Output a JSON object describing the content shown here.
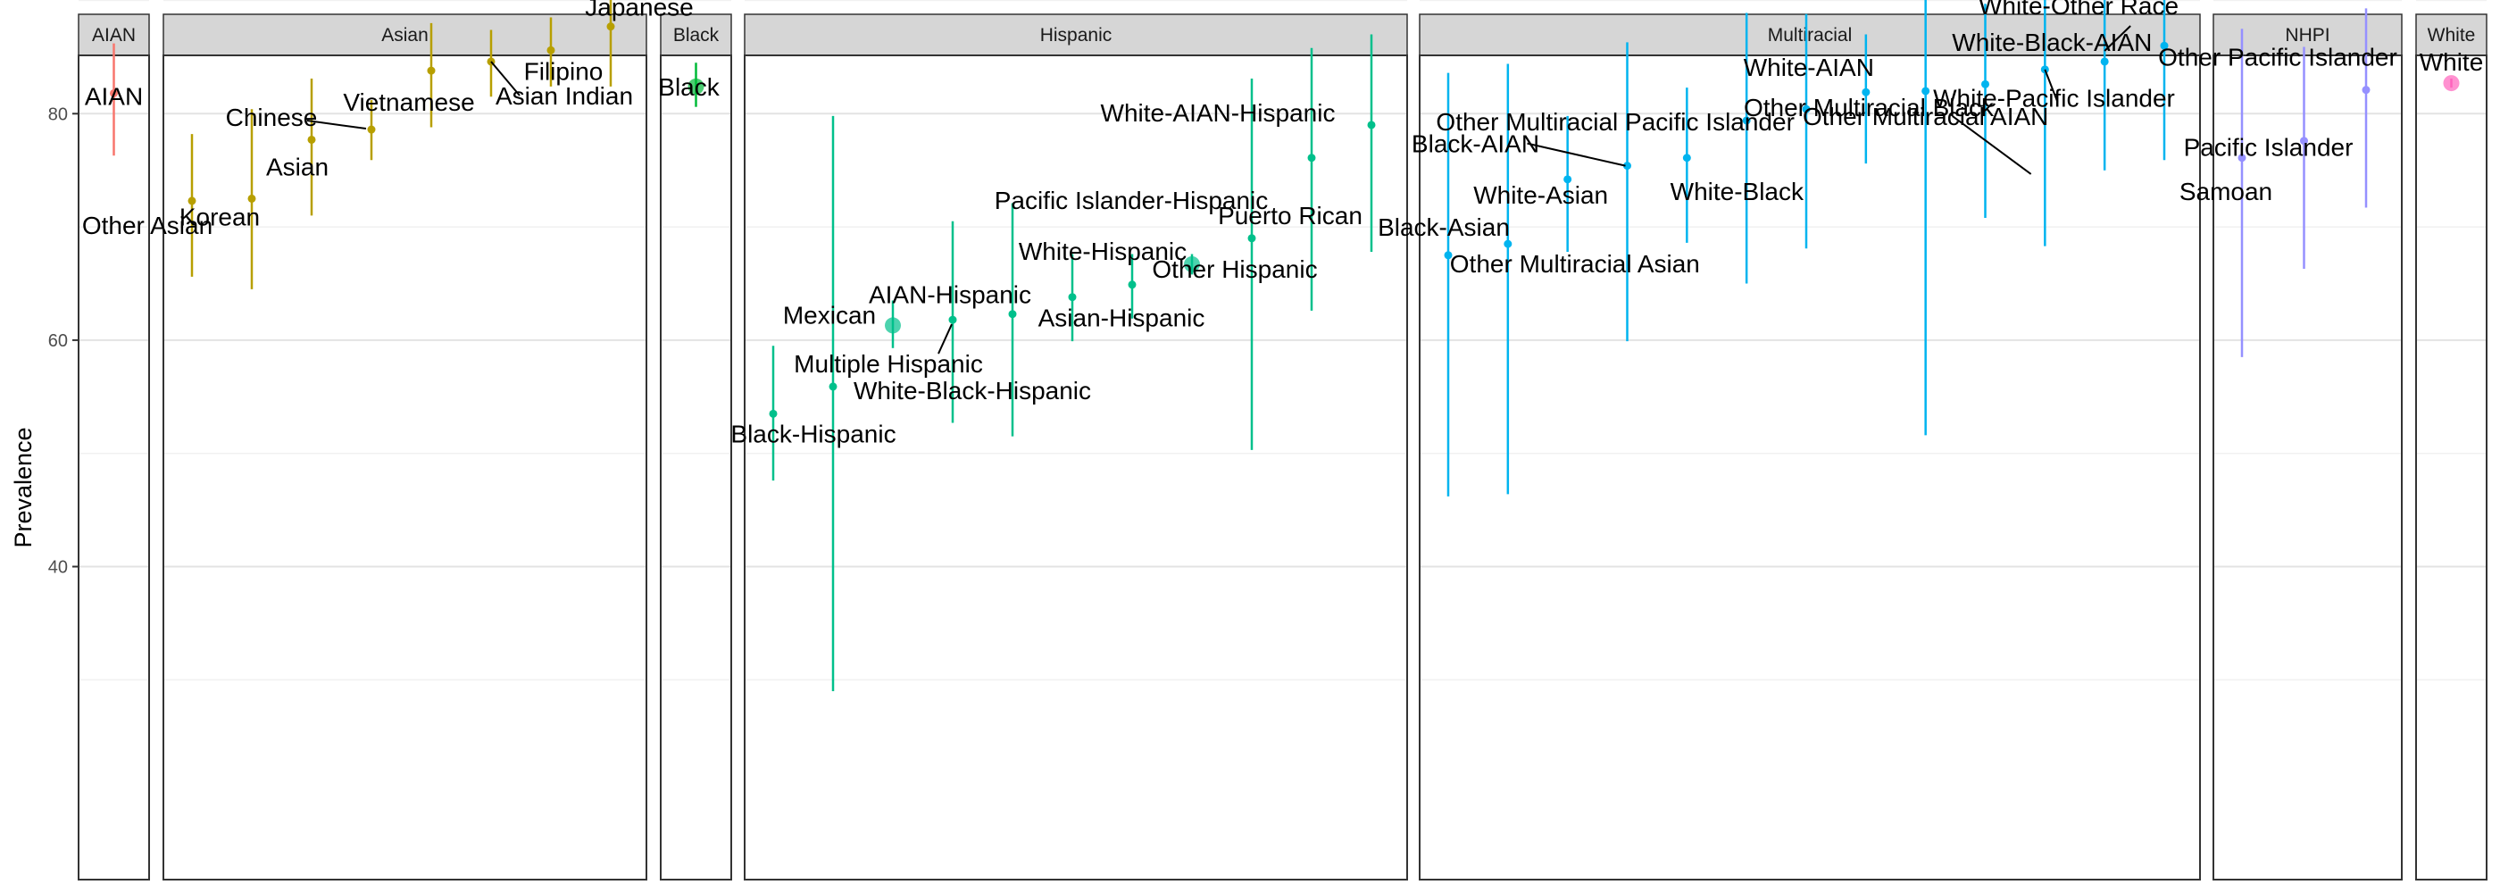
{
  "chart_data": {
    "type": "scatter",
    "subtype": "faceted point-range plot",
    "ylabel": "Prevalence",
    "ylim": [
      27,
      97
    ],
    "yticks": [
      40,
      60,
      80
    ],
    "grid": true,
    "legend": "none",
    "facets": [
      {
        "name": "AIAN",
        "color": "#F8766D",
        "points": [
          {
            "label": "AIAN",
            "y": 81.8,
            "lo": 76.3,
            "hi": 86.2,
            "large": false
          }
        ]
      },
      {
        "name": "Asian",
        "color": "#B79F00",
        "points": [
          {
            "label": "Other Asian",
            "y": 72.3,
            "lo": 65.6,
            "hi": 78.2,
            "large": false
          },
          {
            "label": "Korean",
            "y": 72.5,
            "lo": 64.5,
            "hi": 80.4,
            "large": false
          },
          {
            "label": "Asian",
            "y": 77.7,
            "lo": 71.0,
            "hi": 83.1,
            "large": false
          },
          {
            "label": "Chinese",
            "y": 78.6,
            "lo": 75.9,
            "hi": 81.2,
            "large": false
          },
          {
            "label": "Vietnamese",
            "y": 83.8,
            "lo": 78.8,
            "hi": 88.0,
            "large": false
          },
          {
            "label": "Asian Indian",
            "y": 84.6,
            "lo": 81.5,
            "hi": 87.4,
            "large": false
          },
          {
            "label": "Filipino",
            "y": 85.6,
            "lo": 82.4,
            "hi": 88.5,
            "large": false
          },
          {
            "label": "Japanese",
            "y": 87.7,
            "lo": 82.4,
            "hi": 91.5,
            "large": false
          }
        ]
      },
      {
        "name": "Black",
        "color": "#00BA38",
        "points": [
          {
            "label": "Black",
            "y": 82.4,
            "lo": 80.6,
            "hi": 84.5,
            "large": true
          }
        ]
      },
      {
        "name": "Hispanic",
        "color": "#00C08B",
        "points": [
          {
            "label": "Black-Hispanic",
            "y": 53.5,
            "lo": 47.6,
            "hi": 59.5,
            "large": false
          },
          {
            "label": "White-Black-Hispanic",
            "y": 55.9,
            "lo": 29.0,
            "hi": 79.8,
            "large": false
          },
          {
            "label": "Mexican",
            "y": 61.3,
            "lo": 59.3,
            "hi": 63.5,
            "large": true
          },
          {
            "label": "Multiple Hispanic",
            "y": 61.8,
            "lo": 52.7,
            "hi": 70.5,
            "large": false
          },
          {
            "label": "AIAN-Hispanic",
            "y": 62.3,
            "lo": 51.5,
            "hi": 72.1,
            "large": false
          },
          {
            "label": "Asian-Hispanic",
            "y": 63.8,
            "lo": 59.9,
            "hi": 67.6,
            "large": false
          },
          {
            "label": "White-Hispanic",
            "y": 64.9,
            "lo": 61.9,
            "hi": 67.6,
            "large": false
          },
          {
            "label": "Other Hispanic",
            "y": 66.7,
            "lo": 65.8,
            "hi": 67.6,
            "large": true
          },
          {
            "label": "Puerto Rican",
            "y": 69.0,
            "lo": 50.3,
            "hi": 83.1,
            "large": false
          },
          {
            "label": "Pacific Islander-Hispanic",
            "y": 76.1,
            "lo": 62.6,
            "hi": 85.8,
            "large": false
          },
          {
            "label": "White-AIAN-Hispanic",
            "y": 79.0,
            "lo": 67.8,
            "hi": 87.0,
            "large": false
          }
        ]
      },
      {
        "name": "Multiracial",
        "color": "#00B4EF",
        "points": [
          {
            "label": "Black-Asian",
            "y": 67.5,
            "lo": 46.2,
            "hi": 83.6,
            "large": false
          },
          {
            "label": "Other Multiracial Asian",
            "y": 68.5,
            "lo": 46.4,
            "hi": 84.4,
            "large": false
          },
          {
            "label": "White-Asian",
            "y": 74.2,
            "lo": 67.8,
            "hi": 79.8,
            "large": false
          },
          {
            "label": "Black-AIAN",
            "y": 75.4,
            "lo": 59.9,
            "hi": 86.3,
            "large": false
          },
          {
            "label": "White-Black",
            "y": 76.1,
            "lo": 68.6,
            "hi": 82.3,
            "large": false
          },
          {
            "label": "Other Multiracial Pacific Islander",
            "y": 79.4,
            "lo": 65.0,
            "hi": 88.9,
            "large": false
          },
          {
            "label": "Other Multiracial Black",
            "y": 80.4,
            "lo": 68.1,
            "hi": 88.8,
            "large": false
          },
          {
            "label": "White-AIAN",
            "y": 81.9,
            "lo": 75.6,
            "hi": 87.0,
            "large": false
          },
          {
            "label": "Other Multiracial AIAN",
            "y": 82.0,
            "lo": 51.6,
            "hi": 95.3,
            "large": false
          },
          {
            "label": "White-Pacific Islander",
            "y": 82.6,
            "lo": 70.8,
            "hi": 89.7,
            "large": false
          },
          {
            "label": "White-Black-AIAN",
            "y": 83.9,
            "lo": 68.3,
            "hi": 92.6,
            "large": false
          },
          {
            "label": "White-Other Race",
            "y": 84.6,
            "lo": 75.0,
            "hi": 91.6,
            "large": false
          },
          {
            "label": "White-Other Race",
            "y": 86.0,
            "lo": 75.9,
            "hi": 92.2,
            "large": false
          }
        ]
      },
      {
        "name": "NHPI",
        "color": "#9590FF",
        "points": [
          {
            "label": "Samoan",
            "y": 76.1,
            "lo": 58.5,
            "hi": 87.5,
            "large": false
          },
          {
            "label": "Pacific Islander",
            "y": 77.6,
            "lo": 66.3,
            "hi": 85.9,
            "large": false
          },
          {
            "label": "Other Pacific Islander",
            "y": 82.1,
            "lo": 71.7,
            "hi": 89.3,
            "large": false
          }
        ]
      },
      {
        "name": "White",
        "color": "#FF62BC",
        "points": [
          {
            "label": "White",
            "y": 82.7,
            "lo": 82.3,
            "hi": 83.1,
            "large": true
          }
        ]
      }
    ]
  }
}
